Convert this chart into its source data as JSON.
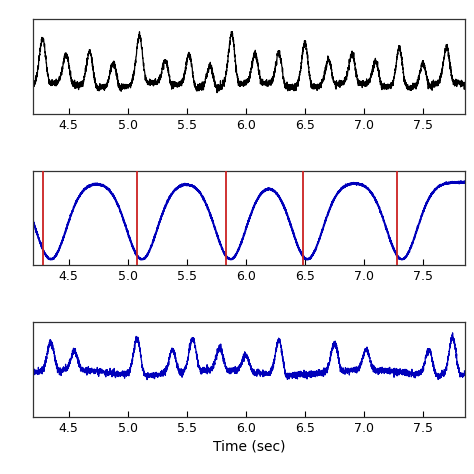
{
  "xlim": [
    4.2,
    7.85
  ],
  "xticks": [
    4.5,
    5.0,
    5.5,
    6.0,
    6.5,
    7.0,
    7.5
  ],
  "xlabel": "Time (sec)",
  "top_color": "#000000",
  "mid_color": "#0000BB",
  "bot_color": "#0000BB",
  "red_line_color": "#CC2222",
  "red_lines": [
    4.28,
    5.08,
    5.83,
    6.48,
    7.28
  ],
  "dip_centers": [
    4.35,
    5.12,
    5.87,
    6.52,
    7.32
  ],
  "background_color": "#ffffff",
  "fs": 1000,
  "figsize": [
    4.74,
    4.74
  ],
  "dpi": 100,
  "top_peaks": [
    4.28,
    4.48,
    4.68,
    4.88,
    5.1,
    5.32,
    5.52,
    5.7,
    5.88,
    6.08,
    6.28,
    6.5,
    6.7,
    6.9,
    7.1,
    7.3,
    7.5,
    7.7
  ],
  "top_peak_heights": [
    0.7,
    0.45,
    0.55,
    0.4,
    0.75,
    0.35,
    0.5,
    0.35,
    0.8,
    0.45,
    0.5,
    0.7,
    0.4,
    0.45,
    0.38,
    0.62,
    0.35,
    0.55
  ],
  "bot_peaks": [
    4.35,
    4.55,
    5.08,
    5.38,
    5.55,
    5.78,
    6.0,
    6.28,
    6.75,
    7.02,
    7.55,
    7.75
  ],
  "bot_peak_heights": [
    0.55,
    0.35,
    0.7,
    0.45,
    0.62,
    0.42,
    0.3,
    0.65,
    0.55,
    0.38,
    0.48,
    0.72
  ]
}
